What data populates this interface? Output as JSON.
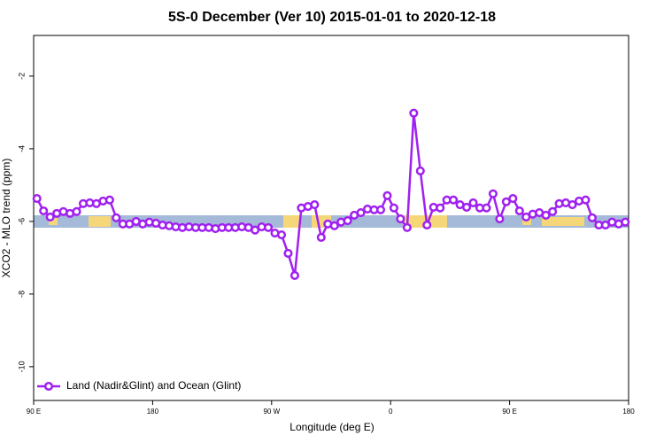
{
  "chart_data": {
    "type": "line",
    "title": "5S-0 December (Ver 10)   2015-01-01 to 2020-12-18",
    "x_label": "Longitude (deg E)",
    "y_label": "XCO2 - MLO trend (ppm)",
    "xlim": [
      90,
      540
    ],
    "xticks": [
      {
        "value": 90,
        "label": "90 E"
      },
      {
        "value": 180,
        "label": "180"
      },
      {
        "value": 270,
        "label": "90 W"
      },
      {
        "value": 360,
        "label": "0"
      },
      {
        "value": 450,
        "label": "90 E"
      },
      {
        "value": 540,
        "label": "180"
      }
    ],
    "ylim": [
      -10.93,
      -0.88
    ],
    "yticks": [
      -10,
      -8,
      -6,
      -4,
      -2
    ],
    "legend": "bottom-left",
    "x": [
      92.5,
      97.5,
      102.5,
      107.5,
      112.5,
      117.5,
      122.5,
      127.5,
      132.5,
      137.5,
      142.5,
      147.5,
      152.5,
      157.5,
      162.5,
      167.5,
      172.5,
      177.5,
      182.5,
      187.5,
      192.5,
      197.5,
      202.5,
      207.5,
      212.5,
      217.5,
      222.5,
      227.5,
      232.5,
      237.5,
      242.5,
      247.5,
      252.5,
      257.5,
      262.5,
      267.5,
      272.5,
      277.5,
      282.5,
      287.5,
      292.5,
      297.5,
      302.5,
      307.5,
      312.5,
      317.5,
      322.5,
      327.5,
      332.5,
      337.5,
      342.5,
      347.5,
      352.5,
      357.5,
      362.5,
      367.5,
      372.5,
      377.5,
      382.5,
      387.5,
      392.5,
      397.5,
      402.5,
      407.5,
      412.5,
      417.5,
      422.5,
      427.5,
      432.5,
      437.5,
      442.5,
      447.5,
      452.5,
      457.5,
      462.5,
      467.5,
      472.5,
      477.5,
      482.5,
      487.5,
      492.5,
      497.5,
      502.5,
      507.5,
      512.5,
      517.5,
      522.5,
      527.5,
      532.5,
      537.5
    ],
    "series": [
      {
        "name": "Land (Nadir&Glint) and Ocean (Glint)",
        "color": "#a020f0",
        "values": [
          -5.37,
          -5.71,
          -5.88,
          -5.78,
          -5.73,
          -5.78,
          -5.73,
          -5.51,
          -5.49,
          -5.51,
          -5.44,
          -5.41,
          -5.9,
          -6.07,
          -6.07,
          -6.0,
          -6.07,
          -6.02,
          -6.05,
          -6.1,
          -6.12,
          -6.15,
          -6.17,
          -6.15,
          -6.17,
          -6.17,
          -6.17,
          -6.2,
          -6.17,
          -6.17,
          -6.17,
          -6.15,
          -6.17,
          -6.24,
          -6.15,
          -6.17,
          -6.32,
          -6.37,
          -6.88,
          -7.49,
          -5.63,
          -5.59,
          -5.54,
          -6.44,
          -6.07,
          -6.12,
          -6.02,
          -5.98,
          -5.83,
          -5.76,
          -5.66,
          -5.68,
          -5.68,
          -5.29,
          -5.63,
          -5.93,
          -6.17,
          -3.02,
          -4.61,
          -6.1,
          -5.61,
          -5.63,
          -5.41,
          -5.41,
          -5.54,
          -5.61,
          -5.49,
          -5.63,
          -5.63,
          -5.24,
          -5.93,
          -5.46,
          -5.37,
          -5.71,
          -5.88,
          -5.8,
          -5.76,
          -5.83,
          -5.73,
          -5.51,
          -5.49,
          -5.54,
          -5.44,
          -5.41,
          -5.9,
          -6.1,
          -6.1,
          -6.02,
          -6.07,
          -6.02
        ]
      }
    ]
  }
}
